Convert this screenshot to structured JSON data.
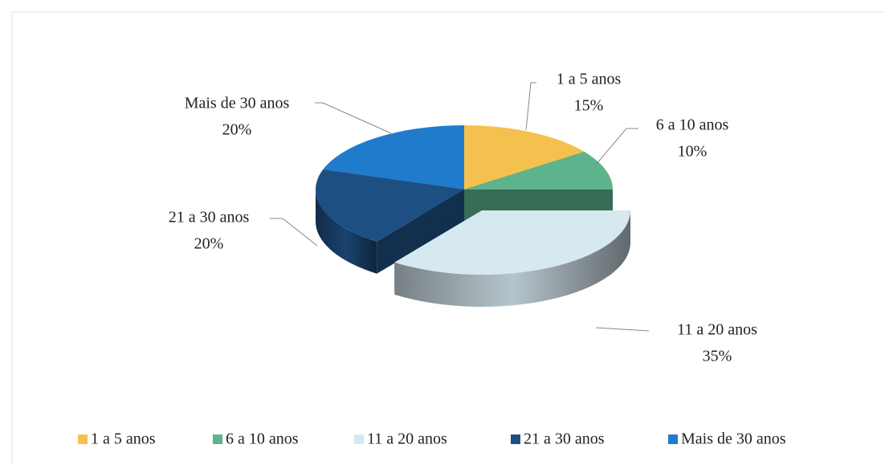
{
  "chart_data": {
    "type": "pie",
    "categories": [
      "1 a 5 anos",
      "6 a 10 anos",
      "11 a 20 anos",
      "21 a 30 anos",
      "Mais de 30 anos"
    ],
    "values": [
      15,
      10,
      35,
      20,
      20
    ],
    "value_labels": [
      "15%",
      "10%",
      "35%",
      "20%",
      "20%"
    ],
    "colors": [
      "#f5c14e",
      "#5db48c",
      "#d6e8f0",
      "#1e4f82",
      "#217bcc"
    ],
    "legend": "bottom"
  }
}
